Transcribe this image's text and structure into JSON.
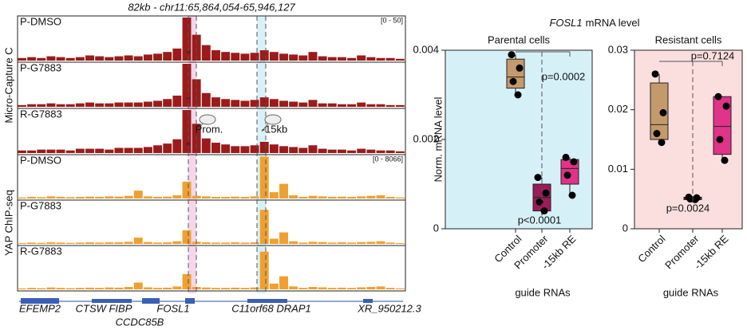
{
  "chart_data": [
    {
      "type": "track",
      "title": "82kb - chr11:65,864,054-65,946,127",
      "groups": [
        {
          "name": "Micro-Capture C",
          "color": "#9b1b1b",
          "range_label": "[0 - 50]",
          "ylim": [
            0,
            50
          ],
          "tracks": [
            {
              "name": "P-DMSO",
              "values": [
                3,
                4,
                3,
                5,
                4,
                3,
                4,
                6,
                5,
                4,
                5,
                6,
                5,
                7,
                8,
                10,
                14,
                50,
                30,
                18,
                12,
                10,
                9,
                8,
                9,
                12,
                10,
                8,
                7,
                6,
                10,
                5,
                4,
                4,
                3,
                6,
                4,
                3,
                3,
                2
              ]
            },
            {
              "name": "P-G7883",
              "values": [
                2,
                3,
                3,
                4,
                3,
                3,
                4,
                5,
                4,
                4,
                5,
                5,
                5,
                6,
                7,
                9,
                13,
                50,
                32,
                16,
                11,
                9,
                8,
                7,
                8,
                11,
                9,
                7,
                6,
                5,
                8,
                4,
                4,
                3,
                3,
                5,
                3,
                3,
                2,
                2
              ]
            },
            {
              "name": "R-G7883",
              "values": [
                3,
                3,
                4,
                4,
                4,
                3,
                5,
                5,
                5,
                4,
                6,
                6,
                6,
                7,
                9,
                11,
                16,
                50,
                34,
                17,
                12,
                10,
                8,
                8,
                9,
                13,
                10,
                8,
                7,
                6,
                9,
                5,
                4,
                4,
                3,
                5,
                4,
                3,
                3,
                2
              ]
            }
          ]
        },
        {
          "name": "YAP ChIP-seq",
          "color": "#f0a030",
          "range_label": "[0 - 8066]",
          "ylim": [
            0,
            8066
          ],
          "tracks": [
            {
              "name": "P-DMSO",
              "values": [
                200,
                300,
                250,
                400,
                300,
                250,
                300,
                350,
                300,
                400,
                350,
                500,
                1500,
                400,
                300,
                350,
                600,
                3200,
                500,
                400,
                300,
                300,
                350,
                300,
                400,
                8000,
                1200,
                2800,
                600,
                300,
                500,
                400,
                300,
                350,
                300,
                400,
                500,
                600,
                300,
                200
              ]
            },
            {
              "name": "P-G7883",
              "values": [
                150,
                250,
                200,
                300,
                250,
                200,
                250,
                300,
                250,
                300,
                300,
                400,
                1200,
                350,
                250,
                300,
                500,
                2600,
                400,
                300,
                250,
                250,
                300,
                250,
                300,
                6500,
                1000,
                2200,
                500,
                250,
                400,
                350,
                250,
                300,
                250,
                350,
                400,
                500,
                250,
                150
              ]
            },
            {
              "name": "R-G7883",
              "values": [
                180,
                280,
                220,
                350,
                280,
                220,
                280,
                320,
                280,
                350,
                320,
                450,
                1300,
                380,
                280,
                320,
                550,
                2900,
                450,
                350,
                280,
                280,
                320,
                280,
                350,
                7200,
                1100,
                2500,
                550,
                280,
                450,
                380,
                280,
                320,
                280,
                380,
                450,
                550,
                280,
                180
              ]
            }
          ]
        }
      ],
      "annotations": [
        "Prom.",
        "-15kb"
      ],
      "star": "*",
      "genes": [
        "EFEMP2",
        "CTSW FIBP",
        "CCDC85B",
        "FOSL1",
        "C11orf68 DRAP1",
        "XR_950212.3"
      ]
    },
    {
      "type": "box",
      "title": "Parental cells",
      "figure_title_gene": "FOSL1",
      "figure_title_rest": "mRNA level",
      "ylabel": "Norm. mRNA level",
      "xlabel": "guide RNAs",
      "categories": [
        "Control",
        "Promoter",
        "-15kb RE"
      ],
      "colors": [
        "#c49a6c",
        "#9c1b5a",
        "#e0338a"
      ],
      "background": "#d6f0f8",
      "ylim": [
        0,
        0.004
      ],
      "yticks": [
        0,
        0.002,
        0.004
      ],
      "boxes": [
        {
          "min": 0.003,
          "q1": 0.00315,
          "median": 0.0034,
          "q3": 0.0038,
          "max": 0.0039,
          "points": [
            0.0039,
            0.0036,
            0.0033,
            0.003
          ]
        },
        {
          "min": 0.0003,
          "q1": 0.0004,
          "median": 0.0007,
          "q3": 0.001,
          "max": 0.00115,
          "points": [
            0.00115,
            0.0008,
            0.0006,
            0.0004
          ]
        },
        {
          "min": 0.00075,
          "q1": 0.001,
          "median": 0.00135,
          "q3": 0.00155,
          "max": 0.0016,
          "points": [
            0.0016,
            0.0015,
            0.0012,
            0.00075
          ]
        }
      ],
      "p_values": [
        "p=0.0002",
        "p<0.0001"
      ]
    },
    {
      "type": "box",
      "title": "Resistant cells",
      "xlabel": "guide RNAs",
      "categories": [
        "Control",
        "Promoter",
        "-15kb RE"
      ],
      "colors": [
        "#c49a6c",
        "#9c1b5a",
        "#e0338a"
      ],
      "background": "#fbdede",
      "ylim": [
        0,
        0.03
      ],
      "yticks": [
        0,
        0.01,
        0.02,
        0.03
      ],
      "boxes": [
        {
          "min": 0.0145,
          "q1": 0.015,
          "median": 0.0175,
          "q3": 0.0245,
          "max": 0.026,
          "points": [
            0.026,
            0.0195,
            0.016,
            0.0145
          ]
        },
        {
          "min": 0.0049,
          "q1": 0.0049,
          "median": 0.0051,
          "q3": 0.0053,
          "max": 0.0053,
          "points": [
            0.0053,
            0.0052,
            0.005,
            0.0049
          ]
        },
        {
          "min": 0.0115,
          "q1": 0.0125,
          "median": 0.0172,
          "q3": 0.0222,
          "max": 0.0222,
          "points": [
            0.0222,
            0.0206,
            0.015,
            0.0115
          ]
        }
      ],
      "p_values": [
        "p=0.7124",
        "p=0.0024"
      ]
    }
  ]
}
